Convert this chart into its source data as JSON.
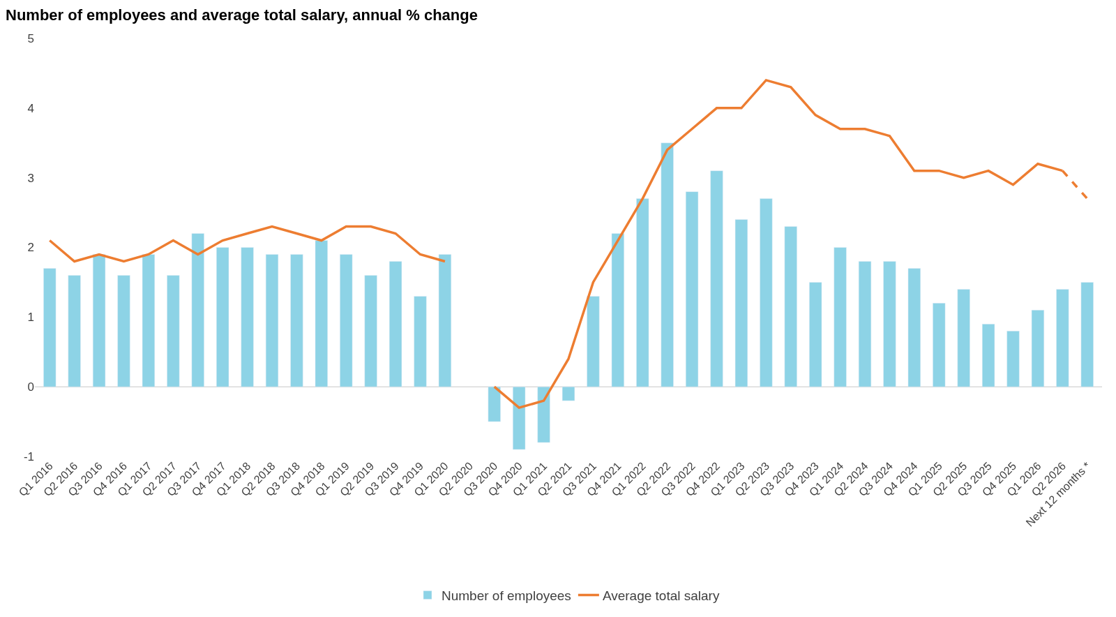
{
  "chart_data": {
    "type": "bar",
    "title": "Number of employees and average total salary, annual % change",
    "categories": [
      "Q1 2016",
      "Q2 2016",
      "Q3 2016",
      "Q4 2016",
      "Q1 2017",
      "Q2 2017",
      "Q3 2017",
      "Q4 2017",
      "Q1 2018",
      "Q2 2018",
      "Q3 2018",
      "Q4 2018",
      "Q1 2019",
      "Q2 2019",
      "Q3 2019",
      "Q4 2019",
      "Q1 2020",
      "Q2 2020",
      "Q3 2020",
      "Q4 2020",
      "Q1 2021",
      "Q2 2021",
      "Q3 2021",
      "Q4 2021",
      "Q1 2022",
      "Q2 2022",
      "Q3 2022",
      "Q4 2022",
      "Q1 2023",
      "Q2 2023",
      "Q3 2023",
      "Q4 2023",
      "Q1 2024",
      "Q2 2024",
      "Q3 2024",
      "Q4 2024",
      "Q1 2025",
      "Q2 2025",
      "Q3 2025",
      "Q4 2025",
      "Q1 2026",
      "Q2 2026",
      "Next 12 months *"
    ],
    "series": [
      {
        "name": "Number of employees",
        "color": "#8dd3e6",
        "values": [
          1.7,
          1.6,
          1.9,
          1.6,
          1.9,
          1.6,
          2.2,
          2.0,
          2.0,
          1.9,
          1.9,
          2.1,
          1.9,
          1.6,
          1.8,
          1.3,
          1.9,
          null,
          -0.5,
          -0.9,
          -0.8,
          -0.2,
          1.3,
          2.2,
          2.7,
          3.5,
          2.8,
          3.1,
          2.4,
          2.7,
          2.3,
          1.5,
          2.0,
          1.8,
          1.8,
          1.7,
          1.2,
          1.4,
          0.9,
          0.8,
          1.1,
          1.4,
          1.5
        ]
      },
      {
        "name": "Average total salary",
        "type": "line",
        "color": "#ed7d31",
        "line_style": "solid",
        "values": [
          2.1,
          1.8,
          1.9,
          1.8,
          1.9,
          2.1,
          1.9,
          2.1,
          2.2,
          2.3,
          2.2,
          2.1,
          2.3,
          2.3,
          2.2,
          1.9,
          1.8,
          null,
          0.0,
          -0.3,
          -0.2,
          0.4,
          1.5,
          2.1,
          2.7,
          3.4,
          3.7,
          4.0,
          4.0,
          4.4,
          4.3,
          3.9,
          3.7,
          3.7,
          3.6,
          3.1,
          3.1,
          3.0,
          3.1,
          2.9,
          3.2,
          3.1,
          null
        ]
      },
      {
        "type": "line",
        "color": "#ed7d31",
        "line_style": "dashed",
        "values": [
          null,
          null,
          null,
          null,
          null,
          null,
          null,
          null,
          null,
          null,
          null,
          null,
          null,
          null,
          null,
          null,
          null,
          null,
          null,
          null,
          null,
          null,
          null,
          null,
          null,
          null,
          null,
          null,
          null,
          null,
          null,
          null,
          null,
          null,
          null,
          null,
          null,
          null,
          null,
          null,
          null,
          3.1,
          2.7
        ]
      }
    ],
    "ref_lines": [
      {
        "axis": "y",
        "value": 0,
        "color": "#d9d9d9",
        "line_style": "solid"
      }
    ],
    "ylim": [
      -1,
      5
    ],
    "yticks": [
      -1,
      0,
      1,
      2,
      3,
      4,
      5
    ],
    "grid": false,
    "legend": "bottom"
  }
}
